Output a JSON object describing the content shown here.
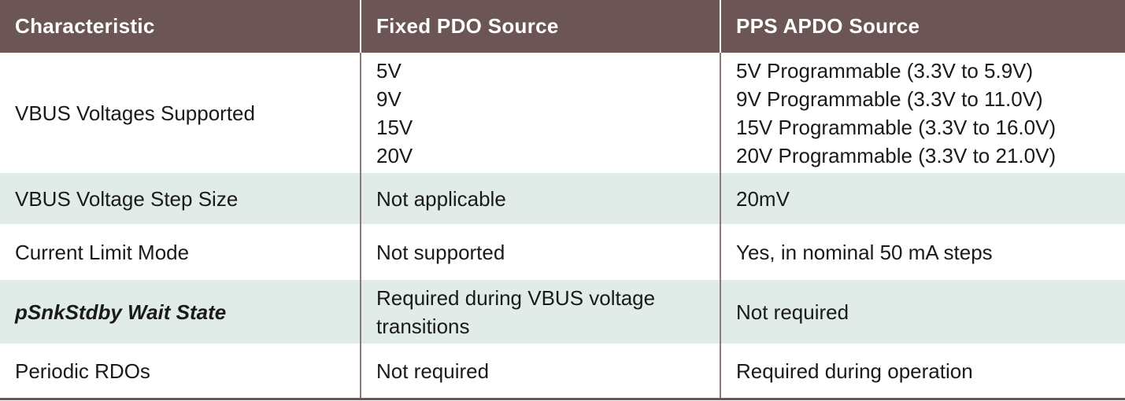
{
  "header": {
    "col1": "Characteristic",
    "col2": "Fixed PDO Source",
    "col3": "PPS APDO Source"
  },
  "rows": [
    {
      "characteristic": "VBUS Voltages Supported",
      "fixed": [
        "5V",
        "9V",
        "15V",
        "20V"
      ],
      "pps": [
        "5V Programmable (3.3V to 5.9V)",
        "9V Programmable (3.3V to 11.0V)",
        "15V Programmable (3.3V to 16.0V)",
        "20V Programmable (3.3V to 21.0V)"
      ]
    },
    {
      "characteristic": "VBUS Voltage Step Size",
      "fixed": "Not applicable",
      "pps": "20mV"
    },
    {
      "characteristic": "Current Limit Mode",
      "fixed": "Not supported",
      "pps": "Yes, in nominal 50 mA steps"
    },
    {
      "characteristic": "pSnkStdby Wait State",
      "fixed": [
        "Required during VBUS voltage",
        "transitions"
      ],
      "pps": "Not required"
    },
    {
      "characteristic": "Periodic RDOs",
      "fixed": "Not required",
      "pps": "Required during operation"
    }
  ],
  "colors": {
    "header_bg": "#6b5555",
    "stripe_bg": "#e1ebe7",
    "text": "#1a1a1a"
  }
}
